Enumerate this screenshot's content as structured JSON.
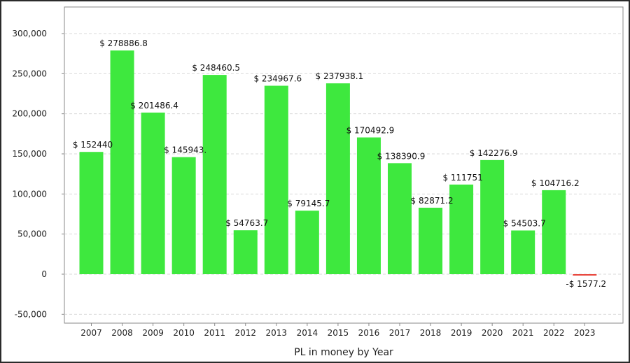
{
  "chart_data": {
    "type": "bar",
    "title": "",
    "xlabel": "PL in money by Year",
    "ylabel": "",
    "ylim": [
      -60000,
      320000
    ],
    "yticks": [
      -50000,
      0,
      50000,
      100000,
      150000,
      200000,
      250000,
      300000
    ],
    "ytick_labels": [
      "-50,000",
      "0",
      "50,000",
      "100,000",
      "150,000",
      "200,000",
      "250,000",
      "300,000"
    ],
    "grid": true,
    "legend": "none",
    "categories": [
      "2007",
      "2008",
      "2009",
      "2010",
      "2011",
      "2012",
      "2013",
      "2014",
      "2015",
      "2016",
      "2017",
      "2018",
      "2019",
      "2020",
      "2021",
      "2022",
      "2023"
    ],
    "values": [
      152440,
      278886.8,
      201486.4,
      145943,
      248460.5,
      54763.7,
      234967.6,
      79145.7,
      237938.1,
      170492.9,
      138390.9,
      82871.2,
      111751,
      142276.9,
      54503.7,
      104716.2,
      -1577.2
    ],
    "data_labels": [
      "$ 152440",
      "$ 278886.8",
      "$ 201486.4",
      "$ 145943.",
      "$ 248460.5",
      "$ 54763.7",
      "$ 234967.6",
      "$ 79145.7",
      "$ 237938.1",
      "$ 170492.9",
      "$ 138390.9",
      "$ 82871.2",
      "$ 111751",
      "$ 142276.9",
      "$ 54503.7",
      "$ 104716.2",
      "-$ 1577.2"
    ],
    "colors": {
      "positive": "#3ee83e",
      "negative": "#e8443a",
      "grid": "#d9d9d9",
      "axis": "#8a8a8a"
    }
  }
}
